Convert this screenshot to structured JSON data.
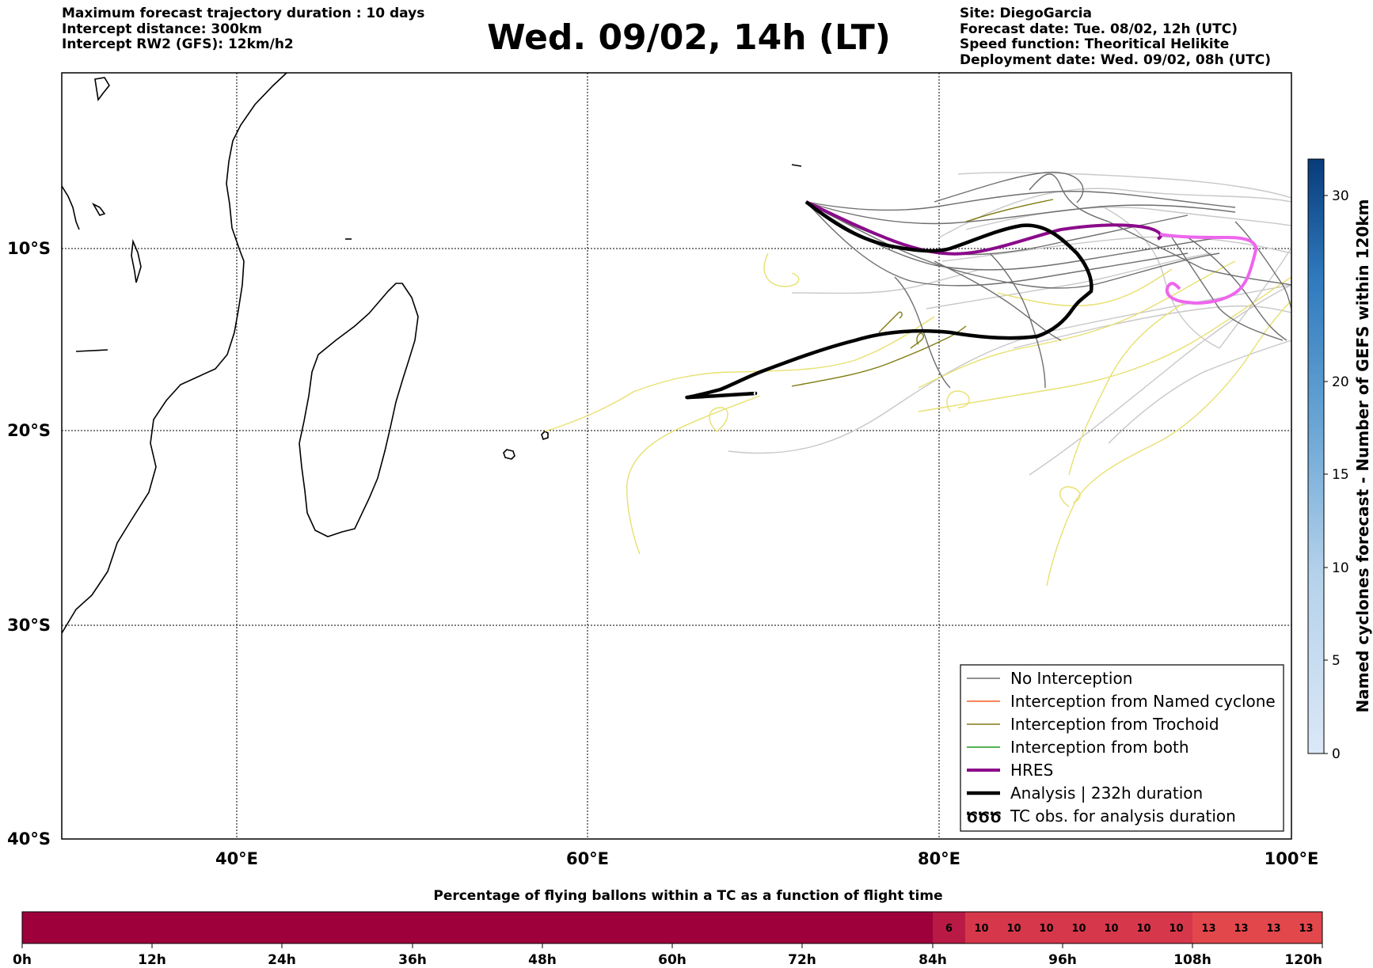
{
  "header": {
    "left_lines": [
      "Maximum forecast trajectory duration : 10 days",
      "Intercept distance: 300km",
      "Intercept RW2 (GFS):  12km/h2"
    ],
    "right_lines": [
      "Site: DiegoGarcia",
      "Forecast date: Tue. 08/02, 12h (UTC)",
      "Speed function: Theoritical Helikite",
      "Deployment date: Wed. 09/02, 08h (UTC)"
    ],
    "title": "Wed. 09/02, 14h (LT)"
  },
  "map": {
    "lon_labels": [
      "40°E",
      "60°E",
      "80°E",
      "100°E"
    ],
    "lat_labels": [
      "10°S",
      "20°S",
      "30°S",
      "40°S"
    ],
    "colors": {
      "no_interception": "#6e6e6e",
      "named_cyclone": "#ff5a1e",
      "trochoid": "#7f7a10",
      "both": "#1e9a1e",
      "hres": "#8a0a8a",
      "analysis": "#000000",
      "tc_obs": "#ee66ee",
      "ensemble_far": "#c8c8c8",
      "ensemble_yellow": "#e8e070"
    }
  },
  "legend": {
    "items": [
      {
        "label": "No Interception",
        "style": "thin-gray"
      },
      {
        "label": "Interception from Named cyclone",
        "style": "thin-orange"
      },
      {
        "label": "Interception from Trochoid",
        "style": "thin-olive"
      },
      {
        "label": "Interception from both",
        "style": "thin-green"
      },
      {
        "label": "HRES",
        "style": "thick-purple"
      },
      {
        "label": "Analysis | 232h duration",
        "style": "thick-black"
      },
      {
        "label": "TC obs. for analysis duration",
        "style": "tc-symbol"
      }
    ],
    "tc_symbol": "ԾԾԾ"
  },
  "colorbar": {
    "label": "Named cyclones forecast - Number of GEFS within 120km",
    "ticks": [
      "0",
      "5",
      "10",
      "15",
      "20",
      "30"
    ]
  },
  "timebar": {
    "title": "Percentage of flying ballons within a TC as a function of flight time",
    "ticks": [
      "0h",
      "12h",
      "24h",
      "36h",
      "48h",
      "60h",
      "72h",
      "84h",
      "96h",
      "108h",
      "120h"
    ],
    "cells": [
      "6",
      "10",
      "10",
      "10",
      "10",
      "10",
      "10",
      "10",
      "13",
      "13",
      "13",
      "13"
    ]
  }
}
